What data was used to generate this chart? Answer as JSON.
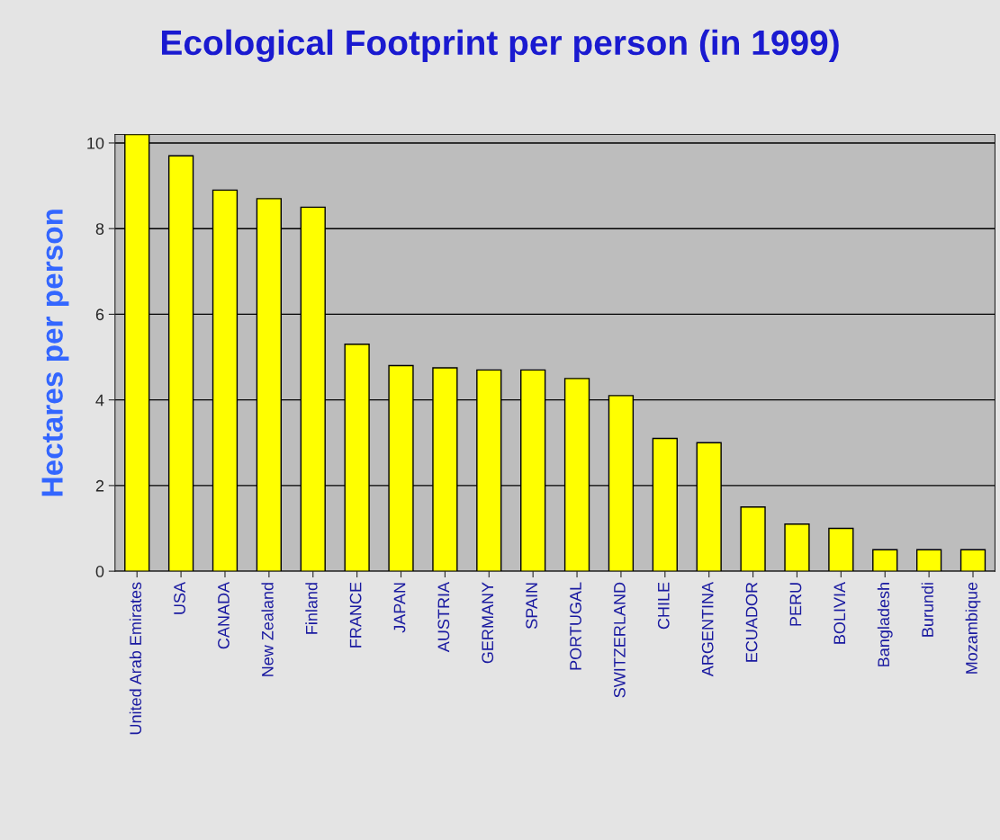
{
  "chart_data": {
    "type": "bar",
    "title": "Ecological Footprint per person (in 1999)",
    "ylabel": "Hectares per person",
    "categories": [
      "United Arab Emirates",
      "USA",
      "CANADA",
      "New Zealand",
      "Finland",
      "FRANCE",
      "JAPAN",
      "AUSTRIA",
      "GERMANY",
      "SPAIN",
      "PORTUGAL",
      "SWITZERLAND",
      "CHILE",
      "ARGENTINA",
      "ECUADOR",
      "PERU",
      "BOLIVIA",
      "Bangladesh",
      "Burundi",
      "Mozambique"
    ],
    "values": [
      10.2,
      9.7,
      8.9,
      8.7,
      8.5,
      5.3,
      4.8,
      4.75,
      4.7,
      4.7,
      4.5,
      4.1,
      3.1,
      3.0,
      1.5,
      1.1,
      1.0,
      0.5,
      0.5,
      0.5
    ],
    "color": "#ffff00",
    "ylim": [
      0,
      10.2
    ],
    "yticks": [
      0,
      2,
      4,
      6,
      8,
      10
    ],
    "grid": "y"
  }
}
